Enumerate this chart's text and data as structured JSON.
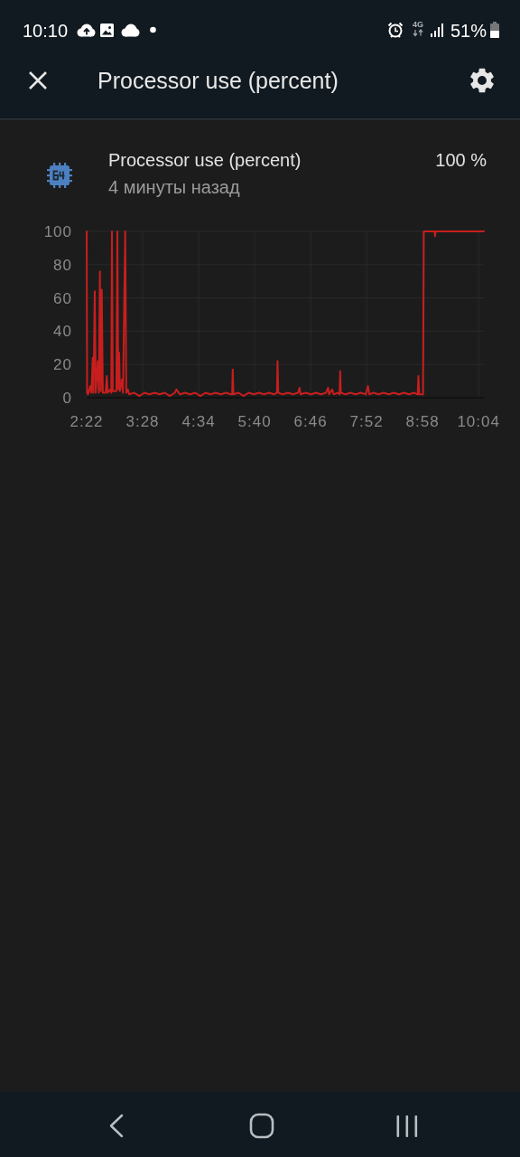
{
  "chart_data": {
    "type": "line",
    "title": "Processor use (percent)",
    "subtitle": "Processor use (percent)",
    "annotations": [
      "4 минуты назад",
      "100 %",
      "10:10",
      "51%",
      "4G"
    ],
    "x": [
      2.367,
      2.376,
      2.393,
      2.438,
      2.46,
      2.486,
      2.5,
      2.526,
      2.545,
      2.585,
      2.605,
      2.627,
      2.645,
      2.663,
      2.685,
      2.74,
      2.762,
      2.78,
      2.83,
      2.85,
      2.863,
      2.88,
      2.95,
      2.97,
      2.988,
      3.005,
      3.02,
      3.059,
      3.08,
      3.124,
      3.145,
      3.177,
      3.2,
      3.3,
      3.4,
      3.5,
      3.6,
      3.7,
      3.8,
      3.9,
      4.0,
      4.1,
      4.13,
      4.2,
      4.3,
      4.4,
      4.5,
      4.6,
      4.7,
      4.8,
      4.9,
      5.0,
      5.1,
      5.2,
      5.225,
      5.236,
      5.25,
      5.35,
      5.45,
      5.55,
      5.65,
      5.75,
      5.85,
      5.95,
      6.05,
      6.105,
      6.116,
      6.13,
      6.22,
      6.32,
      6.42,
      6.52,
      6.548,
      6.57,
      6.67,
      6.77,
      6.87,
      6.97,
      7.07,
      7.109,
      7.13,
      7.19,
      7.22,
      7.3,
      7.335,
      7.347,
      7.36,
      7.45,
      7.55,
      7.65,
      7.75,
      7.85,
      7.893,
      7.92,
      8.0,
      8.1,
      8.2,
      8.3,
      8.4,
      8.5,
      8.6,
      8.7,
      8.8,
      8.87,
      8.883,
      8.9,
      8.975,
      8.99,
      9.2,
      9.21,
      9.22,
      10.17
    ],
    "values": [
      100,
      3,
      2,
      7,
      3,
      24,
      3,
      64,
      3,
      22,
      3,
      76,
      4,
      65,
      3,
      3,
      13,
      3,
      5,
      3,
      100,
      4,
      4,
      100,
      5,
      27,
      4,
      11,
      3,
      100,
      3,
      5,
      2,
      3,
      1,
      3,
      2,
      3,
      2,
      3,
      1,
      3,
      5,
      2,
      3,
      2,
      3,
      1,
      3,
      2,
      3,
      2,
      3,
      2,
      2,
      17,
      2,
      3,
      1,
      3,
      2,
      3,
      2,
      3,
      2,
      3,
      22,
      3,
      2,
      3,
      2,
      3,
      6,
      2,
      3,
      2,
      3,
      2,
      3,
      6,
      2,
      5,
      2,
      3,
      2,
      16,
      3,
      2,
      3,
      2,
      3,
      2,
      7,
      2,
      3,
      2,
      3,
      2,
      3,
      2,
      3,
      2,
      3,
      2,
      13,
      2,
      2,
      100,
      100,
      97,
      100,
      100
    ],
    "color": "#c81e1e",
    "xlim": [
      2.3667,
      10.17
    ],
    "xticks": [
      {
        "value": 2.3667,
        "label": "2:22"
      },
      {
        "value": 3.4667,
        "label": "3:28"
      },
      {
        "value": 4.5667,
        "label": "4:34"
      },
      {
        "value": 5.6667,
        "label": "5:40"
      },
      {
        "value": 6.7667,
        "label": "6:46"
      },
      {
        "value": 7.8667,
        "label": "7:52"
      },
      {
        "value": 8.9667,
        "label": "8:58"
      },
      {
        "value": 10.0667,
        "label": "10:04"
      }
    ],
    "ylim": [
      0,
      100
    ],
    "yticks": [
      0,
      20,
      40,
      60,
      80,
      100
    ],
    "grid": true
  }
}
